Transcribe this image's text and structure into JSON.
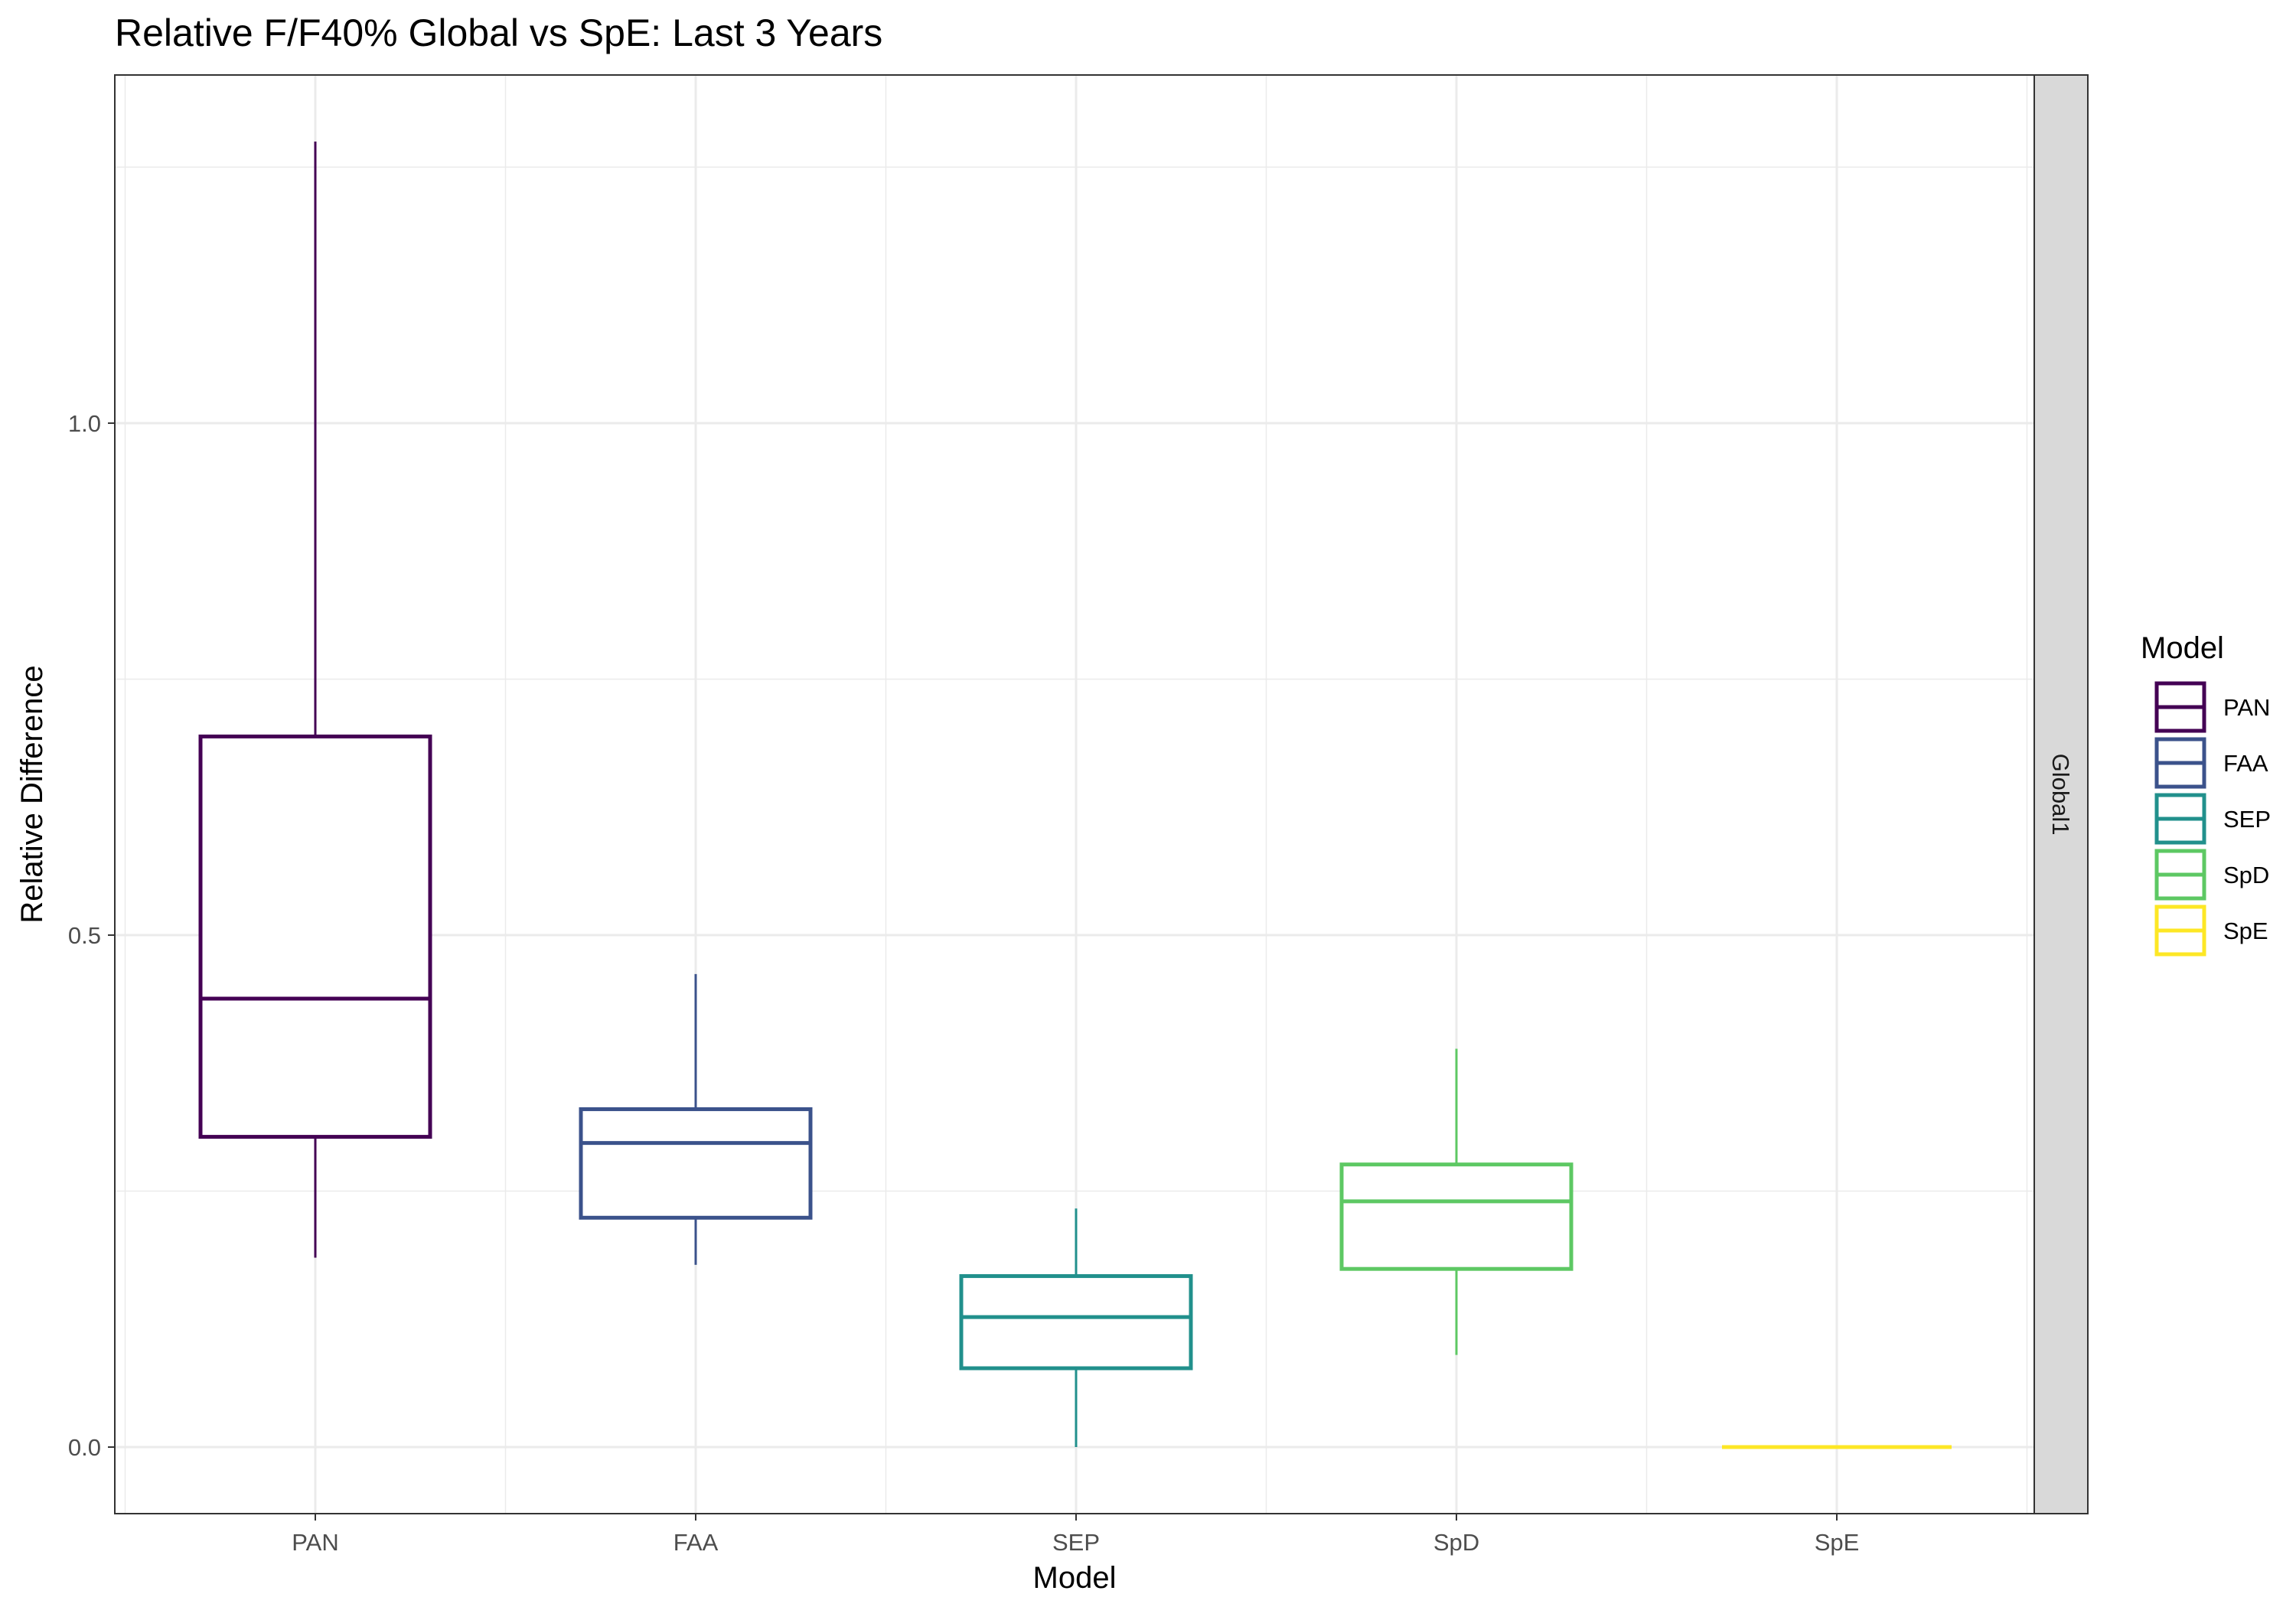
{
  "chart_data": {
    "type": "boxplot",
    "title": "Relative F/F40% Global vs SpE: Last 3 Years",
    "xlabel": "Model",
    "ylabel": "Relative Difference",
    "facet_label": "Global1",
    "ylim": [
      -0.065,
      1.34
    ],
    "yticks": [
      0.0,
      0.5,
      1.0
    ],
    "ytick_labels": [
      "0.0",
      "0.5",
      "1.0"
    ],
    "grid": true,
    "legend": {
      "title": "Model",
      "position": "right"
    },
    "categories": [
      "PAN",
      "FAA",
      "SEP",
      "SpD",
      "SpE"
    ],
    "boxes": [
      {
        "name": "PAN",
        "color": "#440154",
        "min": 0.185,
        "q1": 0.303,
        "median": 0.438,
        "q3": 0.694,
        "max": 1.275
      },
      {
        "name": "FAA",
        "color": "#3B528B",
        "min": 0.178,
        "q1": 0.224,
        "median": 0.297,
        "q3": 0.33,
        "max": 0.462
      },
      {
        "name": "SEP",
        "color": "#21908C",
        "min": 0.0,
        "q1": 0.077,
        "median": 0.127,
        "q3": 0.167,
        "max": 0.233
      },
      {
        "name": "SpD",
        "color": "#5DC863",
        "min": 0.09,
        "q1": 0.174,
        "median": 0.24,
        "q3": 0.276,
        "max": 0.389
      },
      {
        "name": "SpE",
        "color": "#FDE725",
        "min": 0.0,
        "q1": 0.0,
        "median": 0.0,
        "q3": 0.0,
        "max": 0.0
      }
    ]
  }
}
